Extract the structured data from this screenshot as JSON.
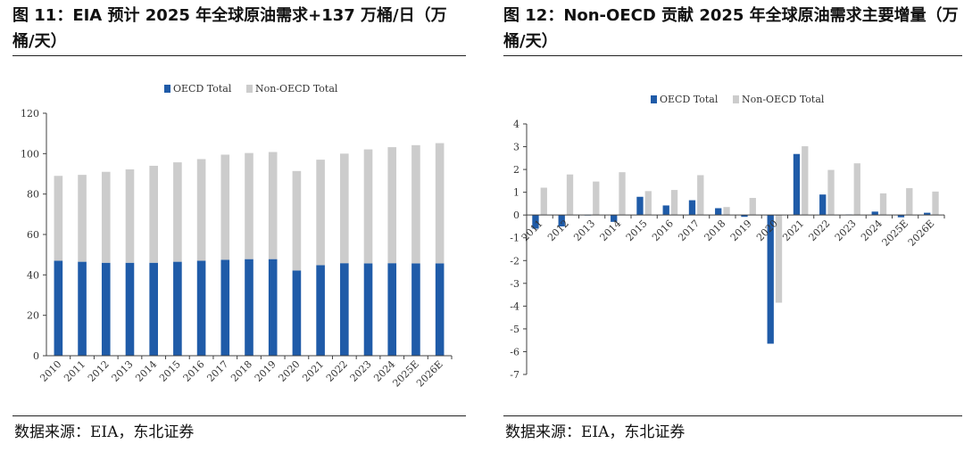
{
  "figures": [
    {
      "title": "图 11：EIA 预计 2025 年全球原油需求+137 万桶/日（万桶/天）",
      "source": "数据来源：EIA，东北证券"
    },
    {
      "title": "图 12：Non-OECD 贡献 2025 年全球原油需求主要增量（万桶/天）",
      "source": "数据来源：EIA，东北证券"
    }
  ],
  "colors": {
    "oecd": "#1f5ba8",
    "non_oecd": "#cccccc",
    "axis": "#404040"
  },
  "chart_data": [
    {
      "type": "bar",
      "stacked": true,
      "categories": [
        "2010",
        "2011",
        "2012",
        "2013",
        "2014",
        "2015",
        "2016",
        "2017",
        "2018",
        "2019",
        "2020",
        "2021",
        "2022",
        "2023",
        "2024",
        "2025E",
        "2026E"
      ],
      "series": [
        {
          "name": "OECD Total",
          "values": [
            47,
            46.5,
            46,
            46,
            46,
            46.5,
            47,
            47.5,
            47.8,
            47.8,
            42.2,
            44.8,
            45.8,
            45.7,
            45.8,
            45.7,
            45.7
          ]
        },
        {
          "name": "Non-OECD Total",
          "values": [
            42,
            43,
            45,
            46.2,
            48,
            49.2,
            50.3,
            52,
            52.5,
            53,
            49.2,
            52.2,
            54.2,
            56.4,
            57.4,
            58.5,
            59.5
          ]
        }
      ],
      "ylim": [
        0,
        120
      ],
      "yticks": [
        0,
        20,
        40,
        60,
        80,
        100,
        120
      ],
      "legend": "top-center",
      "grid": false,
      "title": "",
      "xlabel": "",
      "ylabel": ""
    },
    {
      "type": "bar",
      "stacked": false,
      "categories": [
        "2011",
        "2012",
        "2013",
        "2014",
        "2015",
        "2016",
        "2017",
        "2018",
        "2019",
        "2020",
        "2021",
        "2022",
        "2023",
        "2024",
        "2025E",
        "2026E"
      ],
      "series": [
        {
          "name": "OECD Total",
          "values": [
            -0.6,
            -0.5,
            0,
            -0.3,
            0.8,
            0.42,
            0.65,
            0.3,
            -0.08,
            -5.65,
            2.68,
            0.9,
            0.02,
            0.15,
            -0.1,
            0.1
          ]
        },
        {
          "name": "Non-OECD Total",
          "values": [
            1.2,
            1.78,
            1.47,
            1.88,
            1.05,
            1.1,
            1.75,
            0.35,
            0.75,
            -3.85,
            3.02,
            1.98,
            2.27,
            0.95,
            1.18,
            1.03
          ]
        }
      ],
      "ylim": [
        -7,
        4
      ],
      "yticks": [
        -7,
        -6,
        -5,
        -4,
        -3,
        -2,
        -1,
        0,
        1,
        2,
        3,
        4
      ],
      "legend": "top-center",
      "grid": false,
      "title": "",
      "xlabel": "",
      "ylabel": ""
    }
  ]
}
